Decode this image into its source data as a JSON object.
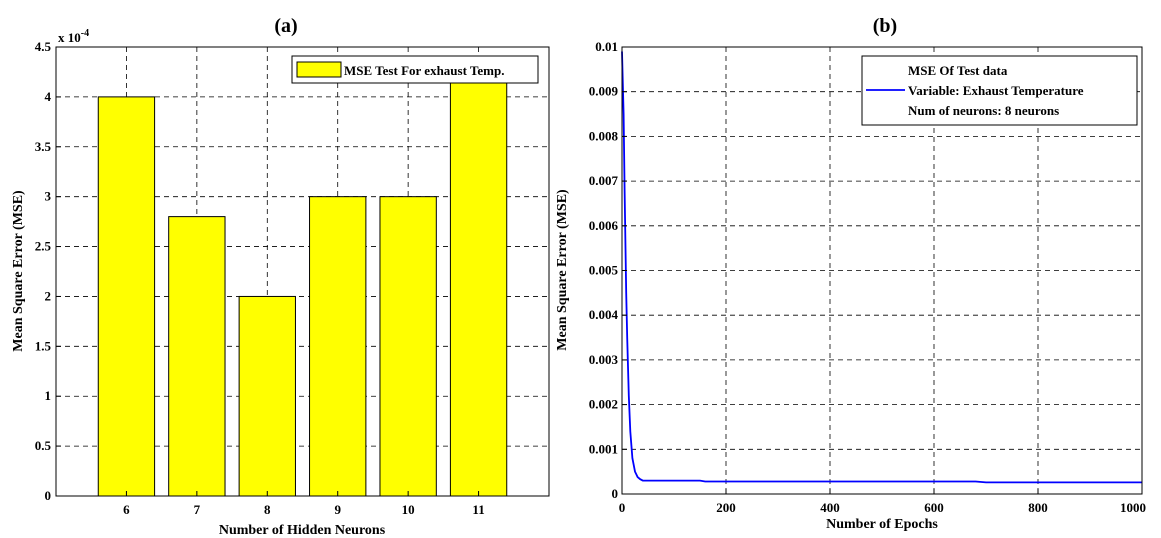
{
  "chart_data": [
    {
      "type": "bar",
      "title": "(a)",
      "xlabel": "Number of Hidden Neurons",
      "ylabel": "Mean Square Error (MSE)",
      "exponent_label": "x 10",
      "exponent": "-4",
      "categories": [
        "6",
        "7",
        "8",
        "9",
        "10",
        "11"
      ],
      "series": [
        {
          "name": "MSE Test For exhaust Temp.",
          "values": [
            4.0,
            2.8,
            2.0,
            3.0,
            3.0,
            4.15
          ]
        }
      ],
      "ylim": [
        0,
        4.5
      ],
      "yticks": [
        "0",
        "0.5",
        "1",
        "1.5",
        "2",
        "2.5",
        "3",
        "3.5",
        "4",
        "4.5"
      ],
      "grid": true,
      "legend_position": "top-right",
      "colors": {
        "bar_fill": "#ffff00",
        "bar_edge": "#000000"
      }
    },
    {
      "type": "line",
      "title": "(b)",
      "xlabel": "Number of Epochs",
      "ylabel": "Mean Square Error (MSE)",
      "xlim": [
        0,
        1000
      ],
      "ylim": [
        0,
        0.01
      ],
      "xticks": [
        "0",
        "200",
        "400",
        "600",
        "800",
        "1000"
      ],
      "yticks": [
        "0",
        "0.001",
        "0.002",
        "0.003",
        "0.004",
        "0.005",
        "0.006",
        "0.007",
        "0.008",
        "0.009",
        "0.01"
      ],
      "series": [
        {
          "name": "MSE Of Test data",
          "x": [
            0,
            3,
            5,
            8,
            10,
            13,
            16,
            20,
            25,
            30,
            35,
            40,
            50,
            60,
            80,
            100,
            150,
            160,
            200,
            400,
            600,
            680,
            700,
            800,
            1000
          ],
          "y": [
            0.0099,
            0.0085,
            0.0068,
            0.0045,
            0.0035,
            0.0022,
            0.0014,
            0.0008,
            0.0005,
            0.00038,
            0.00033,
            0.0003,
            0.0003,
            0.0003,
            0.0003,
            0.0003,
            0.0003,
            0.00028,
            0.00028,
            0.00028,
            0.00028,
            0.00028,
            0.00026,
            0.00026,
            0.00026
          ]
        }
      ],
      "legend_lines": [
        "MSE Of Test data",
        "Variable: Exhaust Temperature",
        "Num of neurons: 8 neurons"
      ],
      "grid": true,
      "legend_position": "top-right",
      "colors": {
        "line": "#0000ff"
      }
    }
  ]
}
